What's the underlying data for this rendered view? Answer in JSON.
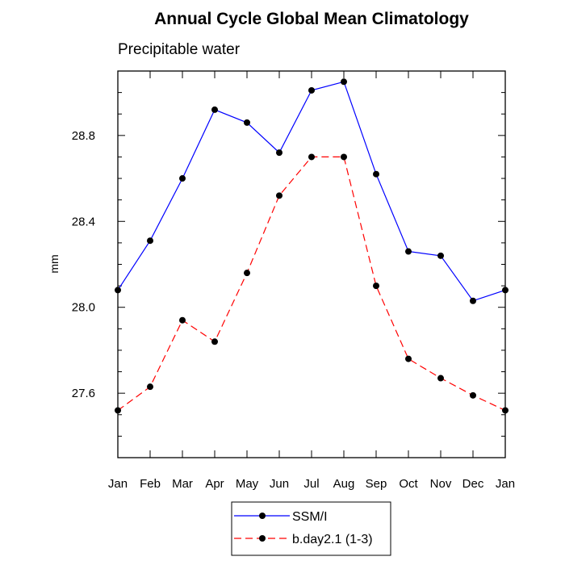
{
  "chart_data": {
    "type": "line",
    "title": "Annual Cycle Global Mean Climatology",
    "subtitle": "Precipitable water",
    "xlabel": "",
    "ylabel": "mm",
    "categories": [
      "Jan",
      "Feb",
      "Mar",
      "Apr",
      "May",
      "Jun",
      "Jul",
      "Aug",
      "Sep",
      "Oct",
      "Nov",
      "Dec",
      "Jan"
    ],
    "ylim": [
      27.3,
      29.1
    ],
    "yticks": [
      27.6,
      28.0,
      28.4,
      28.8
    ],
    "ytick_labels": [
      "27.6",
      "28.0",
      "28.4",
      "28.8"
    ],
    "grid": false,
    "legend_position": "bottom-center",
    "series": [
      {
        "name": "SSM/I",
        "color": "#0000ff",
        "dash": "solid",
        "marker": "filled-circle",
        "values": [
          28.08,
          28.31,
          28.6,
          28.92,
          28.86,
          28.72,
          29.01,
          29.05,
          28.62,
          28.26,
          28.24,
          28.03,
          28.08
        ]
      },
      {
        "name": "b.day2.1 (1-3)",
        "color": "#ff0000",
        "dash": "dashed",
        "marker": "filled-circle",
        "values": [
          27.52,
          27.63,
          27.94,
          27.84,
          28.16,
          28.52,
          28.7,
          28.7,
          28.1,
          27.76,
          27.67,
          27.59,
          27.52
        ]
      }
    ]
  }
}
